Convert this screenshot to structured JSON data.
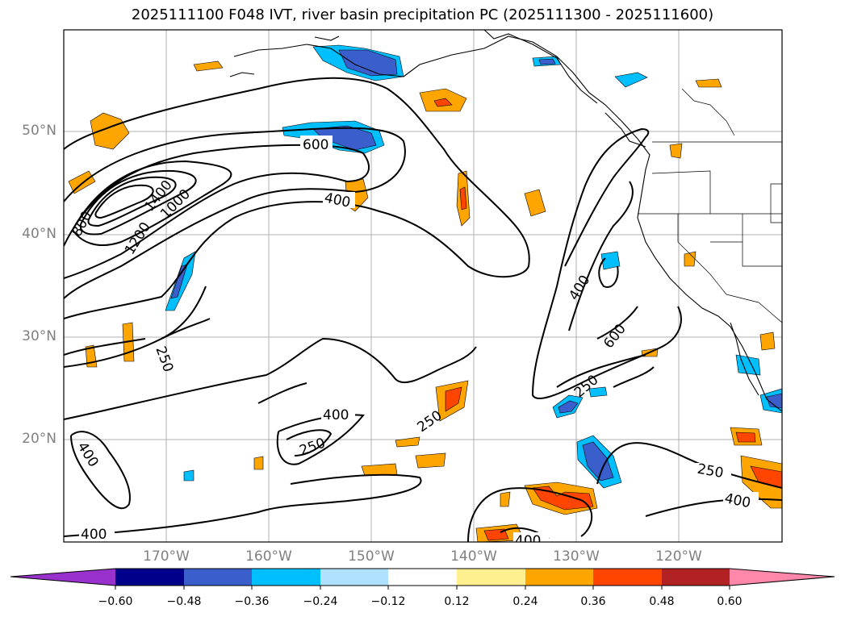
{
  "title": "2025111100 F048 IVT, river basin precipitation PC (2025111300 - 2025111600)",
  "lat_labels": [
    "50°N",
    "40°N",
    "30°N",
    "20°N"
  ],
  "lon_labels": [
    "170°W",
    "160°W",
    "150°W",
    "140°W",
    "130°W",
    "120°W"
  ],
  "contour_labels": [
    "600",
    "400",
    "1400",
    "1000",
    "1200",
    "800",
    "400",
    "600",
    "250",
    "250",
    "400",
    "250",
    "250",
    "250",
    "400",
    "400",
    "400",
    "400"
  ],
  "colorbar": {
    "colors": [
      "#9932cc",
      "#00008b",
      "#3a5fcd",
      "#00bfff",
      "#b0e2ff",
      "#ffffff",
      "#fff08f",
      "#ffa500",
      "#ff4500",
      "#b22222",
      "#ff88aa"
    ],
    "tick_labels": [
      "−0.60",
      "−0.48",
      "−0.36",
      "−0.24",
      "−0.12",
      "0.12",
      "0.24",
      "0.36",
      "0.48",
      "0.60"
    ]
  }
}
